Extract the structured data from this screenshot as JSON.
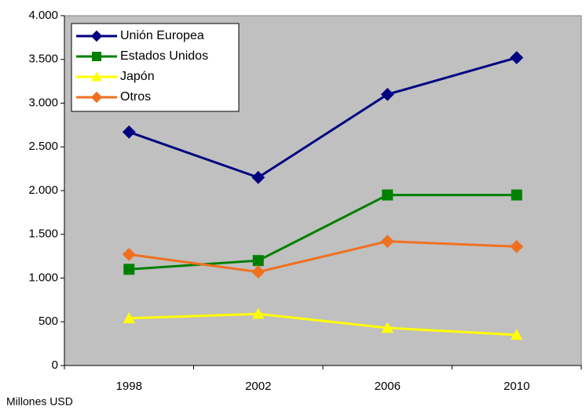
{
  "chart_data": {
    "type": "line",
    "y_label": "Millones USD",
    "categories": [
      "1998",
      "2002",
      "2006",
      "2010"
    ],
    "series": [
      {
        "name": "Unión Europea",
        "color": "#000080",
        "marker": "diamond",
        "values": [
          2670,
          2150,
          3100,
          3520
        ]
      },
      {
        "name": "Estados Unidos",
        "color": "#008000",
        "marker": "square",
        "values": [
          1100,
          1200,
          1950,
          1950
        ]
      },
      {
        "name": "Japón",
        "color": "#ffff00",
        "marker": "triangle",
        "values": [
          540,
          590,
          430,
          350
        ]
      },
      {
        "name": "Otros",
        "color": "#f07020",
        "marker": "diamond",
        "values": [
          1270,
          1070,
          1420,
          1360
        ]
      }
    ],
    "ylim": [
      0,
      4000
    ],
    "yticks": [
      0,
      500,
      {
        "value": 1000,
        "label": "1.000"
      },
      {
        "value": 1500,
        "label": "1.500"
      },
      {
        "value": 2000,
        "label": "2.000"
      },
      {
        "value": 2500,
        "label": "2.500"
      },
      {
        "value": 3000,
        "label": "3.000"
      },
      {
        "value": 3500,
        "label": "3.500"
      },
      {
        "value": 4000,
        "label": "4.000"
      }
    ],
    "grid": false,
    "legend": "upper left",
    "plot_background": "#c0c0c0"
  }
}
